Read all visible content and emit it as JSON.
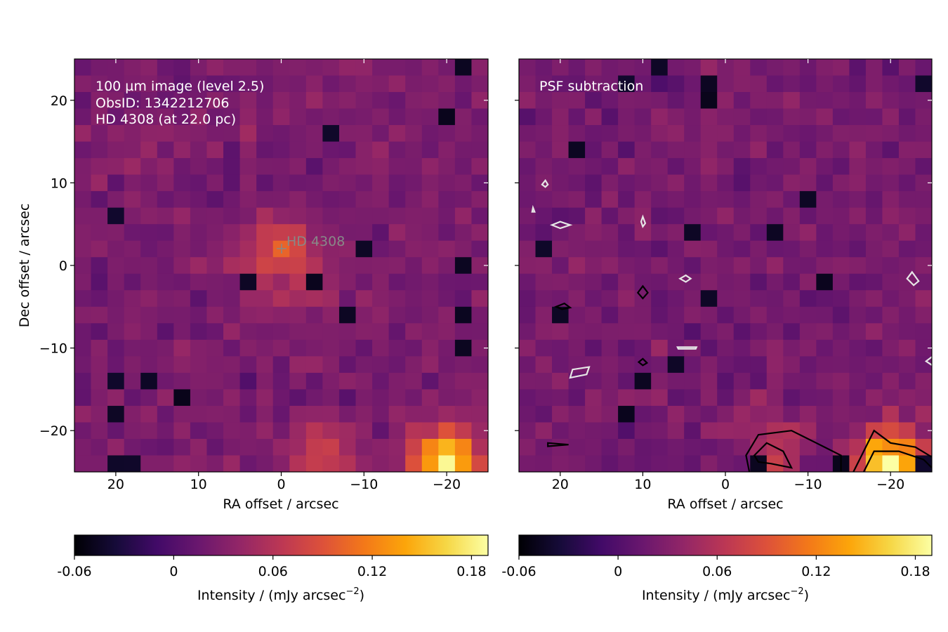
{
  "chart_data": [
    {
      "type": "heatmap",
      "id": "left",
      "annotation_lines": [
        "100 µm image (level 2.5)",
        "ObsID: 1342212706",
        "HD 4308 (at 22.0 pc)"
      ],
      "star_label": "HD   4308",
      "xlabel": "RA offset / arcsec",
      "ylabel": "Dec offset / arcsec",
      "xlim": [
        25,
        -25
      ],
      "ylim": [
        -25,
        25
      ],
      "xticks": [
        20,
        10,
        0,
        -10,
        -20
      ],
      "yticks": [
        20,
        10,
        0,
        -10,
        -20
      ],
      "pixel_scale_arcsec": 2,
      "colormap": "inferno",
      "vmin": -0.06,
      "vmax": 0.19,
      "features": [
        {
          "label": "star",
          "ra": 0,
          "dec": 1,
          "value": 0.09
        },
        {
          "label": "south-east blob",
          "ra": -20,
          "dec": -24,
          "value": 0.18
        },
        {
          "label": "south blob",
          "ra": -5,
          "dec": -23,
          "value": 0.08
        }
      ],
      "colorbar": {
        "label": "Intensity / (mJy arcsec",
        "label_sup": "−2",
        "label_end": ")",
        "ticks": [
          -0.06,
          0,
          0.06,
          0.12,
          0.18
        ],
        "tick_labels": [
          "-0.06",
          "0",
          "0.06",
          "0.12",
          "0.18"
        ]
      }
    },
    {
      "type": "heatmap",
      "id": "right",
      "annotation_lines": [
        "PSF subtraction"
      ],
      "xlabel": "RA offset / arcsec",
      "xlim": [
        25,
        -25
      ],
      "ylim": [
        -25,
        25
      ],
      "xticks": [
        20,
        10,
        0,
        -10,
        -20
      ],
      "yticks": [
        20,
        10,
        0,
        -10,
        -20
      ],
      "pixel_scale_arcsec": 2,
      "colormap": "inferno",
      "vmin": -0.06,
      "vmax": 0.19,
      "contours": "black = positive residuals, white = negative residuals",
      "features": [
        {
          "label": "south-east blob",
          "ra": -20,
          "dec": -24,
          "value": 0.18
        },
        {
          "label": "south blob",
          "ra": -6,
          "dec": -23,
          "value": 0.06
        }
      ],
      "colorbar": {
        "label": "Intensity / (mJy arcsec",
        "label_sup": "−2",
        "label_end": ")",
        "ticks": [
          -0.06,
          0,
          0.06,
          0.12,
          0.18
        ],
        "tick_labels": [
          "-0.06",
          "0",
          "0.06",
          "0.12",
          "0.18"
        ]
      }
    }
  ]
}
